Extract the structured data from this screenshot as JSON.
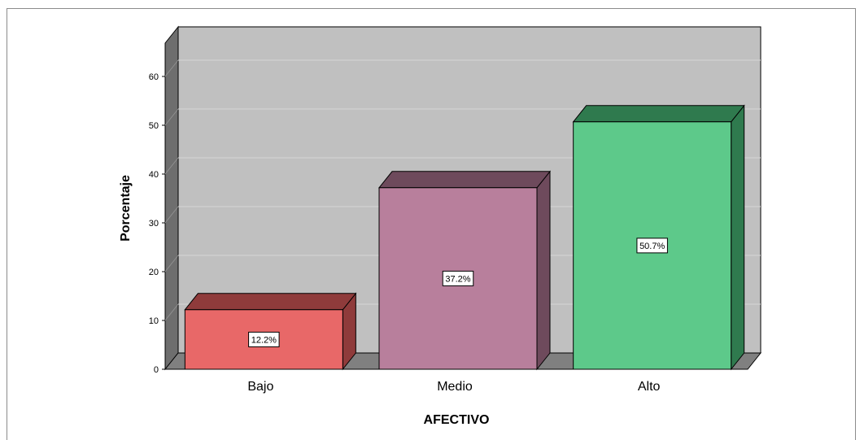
{
  "chart_data": {
    "type": "bar",
    "xlabel": "AFECTIVO",
    "ylabel": "Porcentaje",
    "categories": [
      "Bajo",
      "Medio",
      "Alto"
    ],
    "values": [
      12.2,
      37.2,
      50.7
    ],
    "data_labels": [
      "12.2%",
      "37.2%",
      "50.7%"
    ],
    "yticks": [
      0,
      10,
      20,
      30,
      40,
      50,
      60
    ],
    "ylim": [
      0,
      70
    ],
    "grid": true,
    "style": "3d",
    "colors": {
      "bars": [
        "#e86868",
        "#b87f9c",
        "#5dc98a"
      ],
      "sides": [
        "#8f3b3b",
        "#6e4a5c",
        "#2f7a4e"
      ],
      "plot_background": "#c0c0c0",
      "floor": "#808080",
      "left_wall": "#6e6e6e"
    }
  }
}
